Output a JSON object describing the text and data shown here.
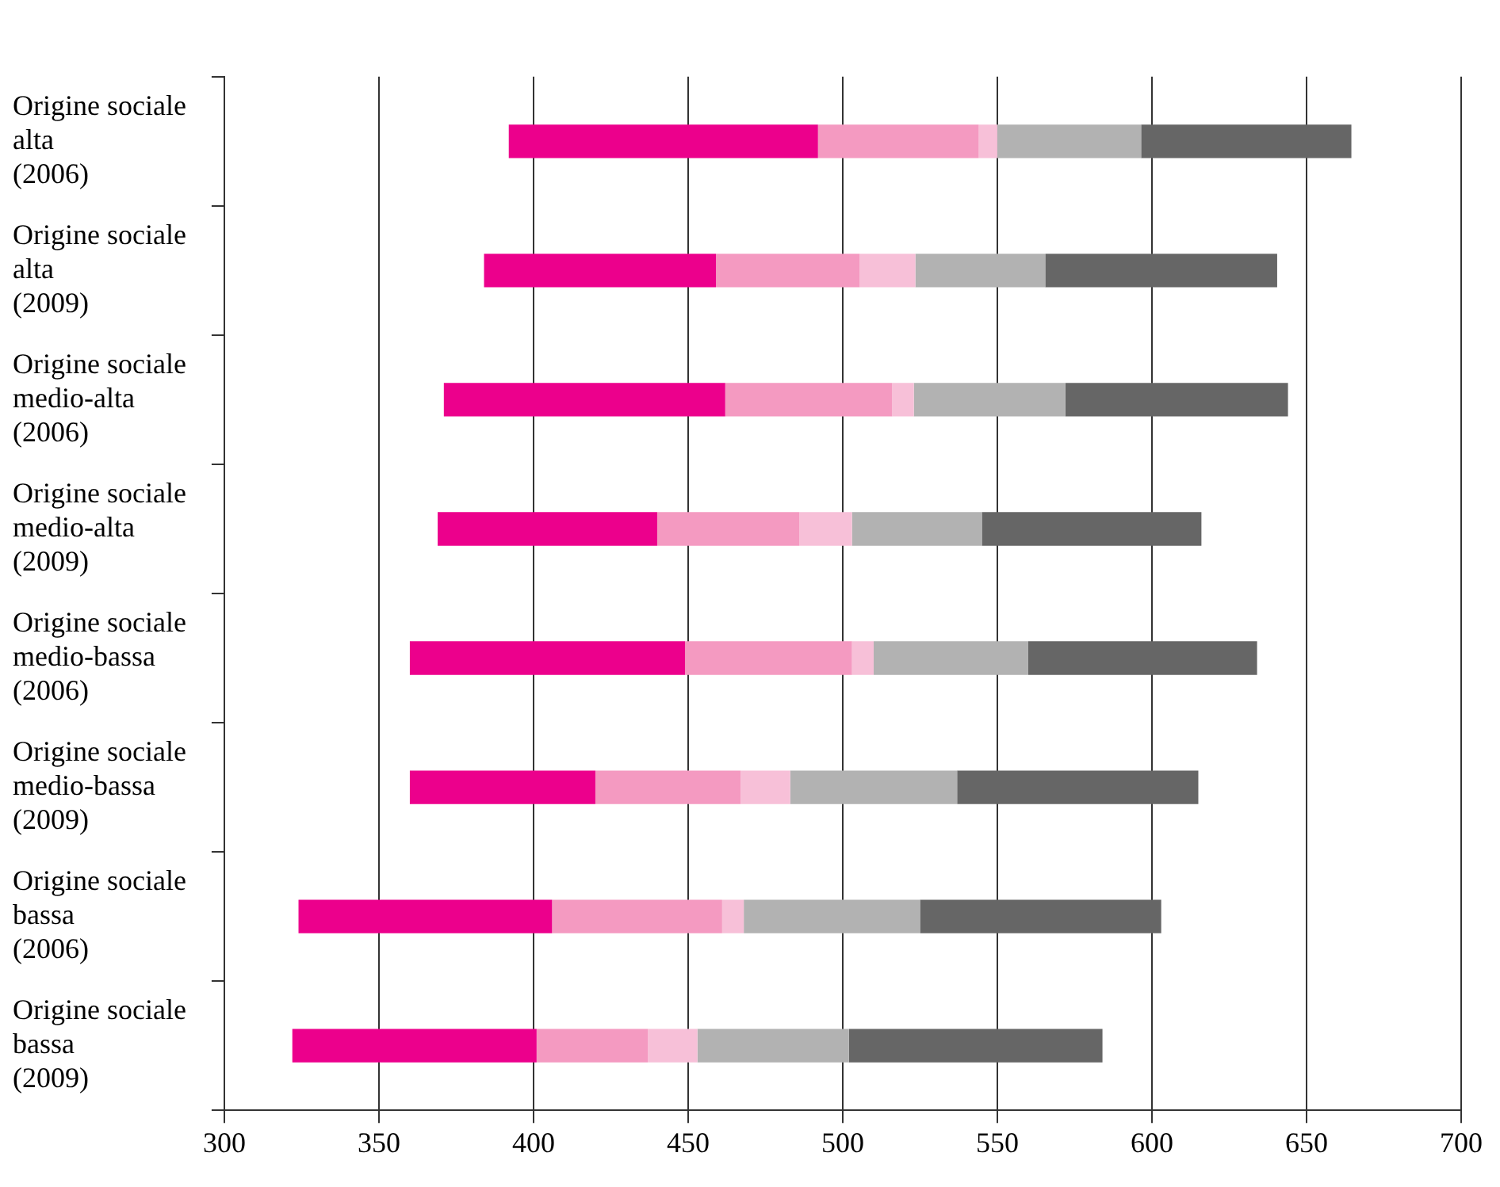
{
  "chart_data": {
    "type": "bar",
    "orientation": "horizontal",
    "grid": "x",
    "categories": [
      "Origine sociale alta (2006)",
      "Origine sociale alta (2009)",
      "Origine sociale medio-alta (2006)",
      "Origine sociale medio-alta (2009)",
      "Origine sociale medio-bassa (2006)",
      "Origine sociale medio-bassa (2009)",
      "Origine sociale bassa (2006)",
      "Origine sociale bassa (2009)"
    ],
    "series": [
      {
        "color": "#ec008c",
        "base": [
          392,
          384,
          371,
          369,
          360,
          360,
          324,
          322
        ],
        "values": [
          100,
          75,
          91,
          71,
          89,
          60,
          82,
          79
        ]
      },
      {
        "color": "#f49ac1",
        "base": [
          492,
          459,
          462,
          440,
          449,
          420,
          406,
          401
        ],
        "values": [
          52,
          46.5,
          54,
          46,
          54,
          47,
          55,
          36
        ]
      },
      {
        "color": "#f7c0d8",
        "base": [
          544,
          505.5,
          516,
          486,
          503,
          467,
          461,
          437
        ],
        "values": [
          6,
          18,
          7,
          17,
          7,
          16,
          7,
          16
        ]
      },
      {
        "color": "#b2b2b2",
        "base": [
          550,
          523.5,
          523,
          503,
          510,
          483,
          468,
          453
        ],
        "values": [
          46.5,
          42,
          49,
          42,
          50,
          54,
          57,
          49
        ]
      },
      {
        "color": "#666666",
        "base": [
          596.5,
          565.5,
          572,
          545,
          560,
          537,
          525,
          502
        ],
        "values": [
          68,
          75,
          72,
          71,
          74,
          78,
          78,
          82
        ]
      }
    ],
    "xlim": [
      300,
      700
    ],
    "xticks": [
      300,
      350,
      400,
      450,
      500,
      550,
      600,
      650,
      700
    ]
  }
}
